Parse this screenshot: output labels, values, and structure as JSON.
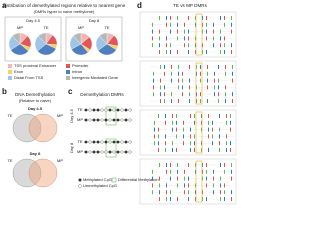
{
  "panel_a": {
    "label": "a",
    "title": "Distribution of demethylated regions relative to nearest gene",
    "subtitle": "(DMRs hyper to naive methylome)",
    "days": [
      {
        "name": "Day 4.5",
        "pies": [
          {
            "name": "MP",
            "values": [
              12,
              18,
              6,
              30,
              22,
              12
            ]
          },
          {
            "name": "TE",
            "values": [
              10,
              16,
              6,
              32,
              24,
              12
            ]
          }
        ]
      },
      {
        "name": "Day 8",
        "pies": [
          {
            "name": "MP",
            "values": [
              14,
              20,
              5,
              28,
              21,
              12
            ]
          },
          {
            "name": "TE",
            "values": [
              11,
              17,
              6,
              31,
              23,
              12
            ]
          }
        ]
      }
    ],
    "legend": [
      {
        "name": "TSS proximal Enhancer",
        "color": "#f2b8b8"
      },
      {
        "name": "Promoter",
        "color": "#e15759"
      },
      {
        "name": "Exon",
        "color": "#f4d35e"
      },
      {
        "name": "Intron",
        "color": "#4f7fbf"
      },
      {
        "name": "Distal From TSS",
        "color": "#9fc5e8"
      },
      {
        "name": "Intergenic Mediated Gene",
        "color": "#b7b7b7"
      }
    ]
  },
  "panel_b": {
    "label": "b",
    "title": "DNA Demethylation",
    "subtitle": "(Relative to naive)",
    "days": [
      {
        "name": "Day 4.5",
        "sets": [
          "TE",
          "MP"
        ]
      },
      {
        "name": "Day 8",
        "sets": [
          "TE",
          "MP"
        ]
      }
    ]
  },
  "panel_c": {
    "label": "c",
    "title": "Demethylation DMRs",
    "days": [
      {
        "name": "Day 4.5",
        "rows": [
          "TE",
          "MP"
        ]
      },
      {
        "name": "Day 8",
        "rows": [
          "TE",
          "MP"
        ]
      }
    ],
    "legend": [
      "Methylated CpG",
      "Unmethylated CpG",
      "Differential Methylation"
    ]
  },
  "panel_d": {
    "label": "d",
    "title": "TE vs MP DMRs"
  }
}
